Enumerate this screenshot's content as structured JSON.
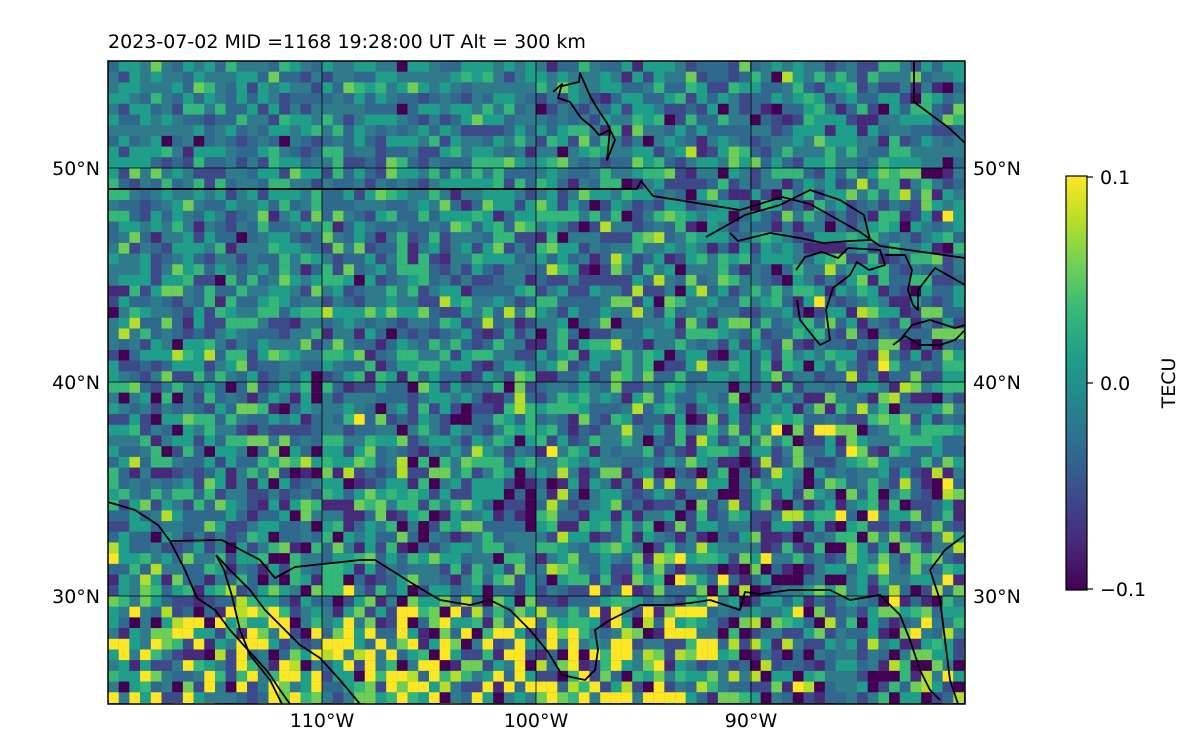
{
  "title": "2023-07-02  MID =1168    19:28:00  UT  Alt = 300 km",
  "map": {
    "lon_range": [
      -120,
      -80
    ],
    "lat_range": [
      25,
      55
    ],
    "lon_ticks": [
      -110,
      -100,
      -90
    ],
    "lat_ticks": [
      30,
      40,
      50
    ],
    "lon_tick_labels": [
      "110°W",
      "100°W",
      "90°W"
    ],
    "lat_tick_labels": [
      "30°N",
      "40°N",
      "50°N"
    ],
    "gridlines": true,
    "coastlines": true,
    "colormap": "viridis"
  },
  "colorbar": {
    "label": "TECU",
    "min": -0.1,
    "max": 0.1,
    "tick_labels": [
      "0.1",
      "0.0",
      "−0.1"
    ],
    "colors": [
      "#440154",
      "#482878",
      "#3e4989",
      "#31688e",
      "#26828e",
      "#1f9e89",
      "#35b779",
      "#6ece58",
      "#b5de2b",
      "#fde725"
    ]
  },
  "colors": {
    "background_mean": "#2f7b8c",
    "coastline": "#000000",
    "gridline": "#000000"
  }
}
